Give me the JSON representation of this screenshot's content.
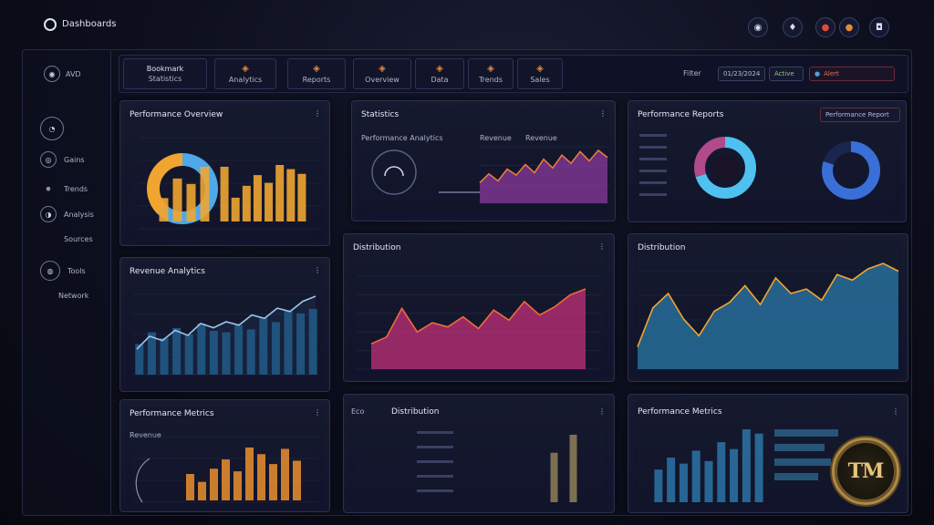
{
  "app": {
    "title": "Dashboards"
  },
  "header": {
    "icons": [
      {
        "name": "globe-icon",
        "glyph": "◉"
      },
      {
        "name": "bell-icon",
        "glyph": "♦"
      },
      {
        "name": "alert-icon",
        "glyph": "●"
      },
      {
        "name": "menu-icon",
        "glyph": "●"
      },
      {
        "name": "profile-icon",
        "glyph": "◘"
      }
    ]
  },
  "sidebar": {
    "top_label": "AVD",
    "items": [
      {
        "label": "",
        "icon": "clock-icon",
        "glyph": "◔"
      },
      {
        "label": "Gains",
        "icon": "target-icon",
        "glyph": "◎"
      },
      {
        "label": "Trends",
        "icon": "dot-icon",
        "glyph": "•"
      },
      {
        "label": "Analysis",
        "icon": "chart-icon",
        "glyph": "◑"
      },
      {
        "label": "Sources",
        "icon": "",
        "glyph": ""
      },
      {
        "label": "Tools",
        "icon": "settings-icon",
        "glyph": "◍"
      },
      {
        "label": "Network",
        "icon": "",
        "glyph": ""
      }
    ]
  },
  "toolbar": {
    "chips": [
      {
        "label": "Bookmark",
        "sub": "Statistics",
        "glyph": ""
      },
      {
        "label": "",
        "sub": "Analytics",
        "glyph": "◈"
      },
      {
        "label": "",
        "sub": "Reports",
        "glyph": "◈"
      },
      {
        "label": "",
        "sub": "Overview",
        "glyph": "◈"
      },
      {
        "label": "",
        "sub": "Data",
        "glyph": "◈"
      },
      {
        "label": "",
        "sub": "Trends",
        "glyph": "◈"
      },
      {
        "label": "",
        "sub": "Sales",
        "glyph": "◈"
      }
    ],
    "right_label": "Filter",
    "date_label": "01/23/2024",
    "status_label": "Active",
    "alert_label": "Alert"
  },
  "panels": {
    "p1": {
      "title": "Performance Overview",
      "menu": "⋮"
    },
    "p2": {
      "title": "Statistics",
      "menu": "⋮",
      "sub_left": "Performance Analytics",
      "sub_mid": "Revenue",
      "sub_right": "Revenue"
    },
    "p3": {
      "title": "Performance Reports",
      "menu": "",
      "action": "Performance Report"
    },
    "p4": {
      "title": "Revenue Analytics",
      "menu": "⋮"
    },
    "p5": {
      "title": "Distribution",
      "menu": "⋮"
    },
    "p6": {
      "title": "Distribution",
      "menu": ""
    },
    "p7": {
      "title": "Performance Metrics",
      "menu": "⋮",
      "sub": "Revenue"
    },
    "p8": {
      "title": "Distribution",
      "menu": "⋮",
      "tag": "Eco"
    },
    "p9": {
      "title": "Performance Metrics",
      "menu": "⋮"
    }
  },
  "chart_data": [
    {
      "type": "bar",
      "panel": "p1",
      "donut_values": [
        62,
        38
      ],
      "values": [
        30,
        55,
        48,
        70,
        92,
        40,
        60,
        78,
        65,
        95,
        88,
        80
      ],
      "colors": {
        "donut_a": "#4fa8e8",
        "donut_b": "#f0a531",
        "bar": "#f0a531"
      }
    },
    {
      "type": "area",
      "panel": "p2",
      "values": [
        35,
        50,
        38,
        58,
        48,
        66,
        52,
        75,
        60,
        82,
        68,
        88,
        72,
        90,
        78
      ],
      "colors": {
        "line": "#e87a3f",
        "fill": "#8a3a9e"
      }
    },
    {
      "type": "pie",
      "panel": "p3",
      "donuts": [
        {
          "values": [
            70,
            30
          ],
          "colors": [
            "#4fc1f0",
            "#b04a8a"
          ]
        },
        {
          "values": [
            80,
            20
          ],
          "colors": [
            "#3a6fd8",
            "#1a2550"
          ]
        }
      ]
    },
    {
      "type": "bar",
      "panel": "p4",
      "values": [
        42,
        58,
        50,
        64,
        55,
        70,
        60,
        58,
        68,
        62,
        78,
        72,
        88,
        84,
        90
      ],
      "line": [
        30,
        45,
        40,
        52,
        46,
        60,
        55,
        62,
        58,
        70,
        66,
        78,
        74,
        86,
        92
      ],
      "colors": {
        "bar": "#1f5a86",
        "line": "#9cc8e8"
      }
    },
    {
      "type": "area",
      "panel": "p5",
      "values": [
        30,
        38,
        72,
        44,
        55,
        50,
        62,
        48,
        70,
        58,
        80,
        64,
        74,
        88,
        95
      ],
      "colors": {
        "line": "#f26a3a",
        "fill": "#c2307a"
      }
    },
    {
      "type": "area",
      "panel": "p6",
      "values": [
        20,
        55,
        68,
        45,
        30,
        52,
        60,
        75,
        58,
        82,
        68,
        72,
        62,
        85,
        80,
        90,
        95,
        88
      ],
      "colors": {
        "line": "#f0a531",
        "fill": "#2a7aa8"
      }
    },
    {
      "type": "bar",
      "panel": "p7",
      "values": [
        40,
        28,
        48,
        62,
        44,
        80,
        70,
        55,
        78,
        60
      ],
      "colors": {
        "bar": "#e0882f"
      }
    },
    {
      "type": "bar",
      "panel": "p8",
      "values": [
        55,
        75
      ],
      "colors": {
        "bar": "#8a7a55"
      }
    },
    {
      "type": "bar",
      "panel": "p9",
      "values": [
        38,
        52,
        45,
        60,
        48,
        70,
        62,
        85,
        80
      ],
      "hbars": [
        70,
        55,
        62,
        48
      ],
      "colors": {
        "bar": "#2a6fa0"
      }
    }
  ]
}
